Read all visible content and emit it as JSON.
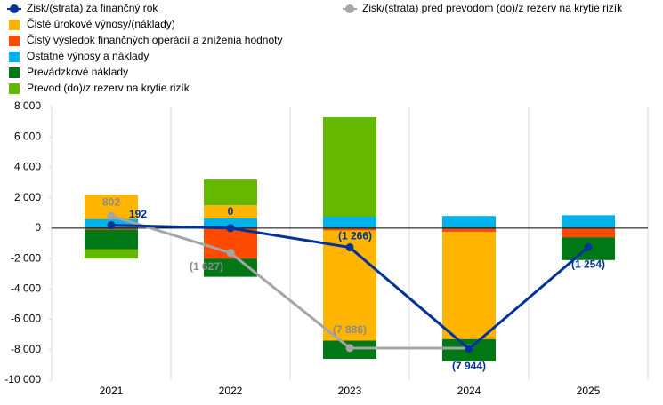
{
  "chart_data": {
    "type": "bar",
    "categories": [
      "2021",
      "2022",
      "2023",
      "2024",
      "2025"
    ],
    "ylim": [
      -10000,
      8000
    ],
    "yticks": [
      {
        "value": -10000,
        "label": "-10 000"
      },
      {
        "value": -8000,
        "label": "-8 000"
      },
      {
        "value": -6000,
        "label": "-6 000"
      },
      {
        "value": -4000,
        "label": "-4 000"
      },
      {
        "value": -2000,
        "label": "-2 000"
      },
      0,
      {
        "value": 2000,
        "label": "2 000"
      },
      {
        "value": 4000,
        "label": "4 000"
      },
      {
        "value": 6000,
        "label": "6 000"
      },
      {
        "value": 8000,
        "label": "8 000"
      }
    ],
    "series": [
      {
        "name": "Zisk/(strata) za finančný rok",
        "type": "line",
        "color": "#003299",
        "values": [
          192,
          0,
          -1266,
          -7944,
          -1254
        ],
        "value_labels": [
          "192",
          "0",
          "(1 266)",
          "(7 944)",
          "(1 254)"
        ]
      },
      {
        "name": "Zisk/(strata) pred prevodom (do)/z rezerv na krytie rizík",
        "type": "line",
        "color": "#a5a5a5",
        "values": [
          802,
          -1627,
          -7886,
          -7900,
          null
        ],
        "value_labels": [
          "802",
          "(1 627)",
          "(7 886)",
          null,
          null
        ]
      },
      {
        "name": "Čisté úrokové výnosy/(náklady)",
        "type": "bar",
        "color": "#ffb400",
        "values": [
          1600,
          850,
          -7250,
          -7050,
          0
        ]
      },
      {
        "name": "Čistý výsledok finančných operácií a zníženia hodnoty",
        "type": "bar",
        "color": "#ff4b00",
        "values": [
          -100,
          -2000,
          -150,
          -250,
          -600
        ]
      },
      {
        "name": "Ostatné výnosy a náklady",
        "type": "bar",
        "color": "#00b1ea",
        "values": [
          600,
          650,
          750,
          800,
          850
        ]
      },
      {
        "name": "Prevádzkové náklady",
        "type": "bar",
        "color": "#007816",
        "values": [
          -1300,
          -1200,
          -1200,
          -1450,
          -1500
        ]
      },
      {
        "name": "Prevod (do)/z rezerv na krytie rizík",
        "type": "bar",
        "color": "#65b800",
        "values": [
          -600,
          1700,
          6550,
          0,
          0
        ]
      }
    ]
  }
}
